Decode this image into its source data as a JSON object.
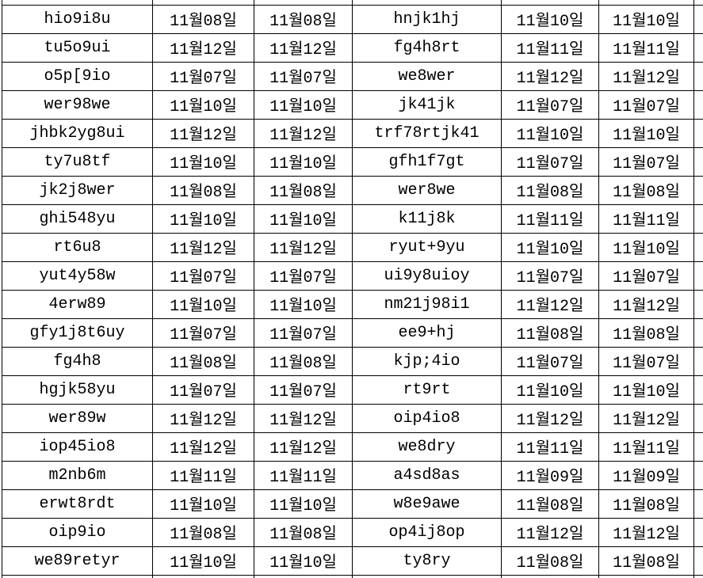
{
  "colors": {
    "background": "#ffffff",
    "grid_border": "#000000",
    "text": "#000000"
  },
  "table": {
    "description_visible_columns": 6,
    "rows": [
      [
        "hio9i8u",
        "11월08일",
        "11월08일",
        "hnjk1hj",
        "11월10일",
        "11월10일"
      ],
      [
        "tu5o9ui",
        "11월12일",
        "11월12일",
        "fg4h8rt",
        "11월11일",
        "11월11일"
      ],
      [
        "o5p[9io",
        "11월07일",
        "11월07일",
        "we8wer",
        "11월12일",
        "11월12일"
      ],
      [
        "wer98we",
        "11월10일",
        "11월10일",
        "jk41jk",
        "11월07일",
        "11월07일"
      ],
      [
        "jhbk2yg8ui",
        "11월12일",
        "11월12일",
        "trf78rtjk41",
        "11월10일",
        "11월10일"
      ],
      [
        "ty7u8tf",
        "11월10일",
        "11월10일",
        "gfh1f7gt",
        "11월07일",
        "11월07일"
      ],
      [
        "jk2j8wer",
        "11월08일",
        "11월08일",
        "wer8we",
        "11월08일",
        "11월08일"
      ],
      [
        "ghi548yu",
        "11월10일",
        "11월10일",
        "k11j8k",
        "11월11일",
        "11월11일"
      ],
      [
        "rt6u8",
        "11월12일",
        "11월12일",
        "ryut+9yu",
        "11월10일",
        "11월10일"
      ],
      [
        "yut4y58w",
        "11월07일",
        "11월07일",
        "ui9y8uioy",
        "11월07일",
        "11월07일"
      ],
      [
        "4erw89",
        "11월10일",
        "11월10일",
        "nm21j98i1",
        "11월12일",
        "11월12일"
      ],
      [
        "gfy1j8t6uy",
        "11월07일",
        "11월07일",
        "ee9+hj",
        "11월08일",
        "11월08일"
      ],
      [
        "fg4h8",
        "11월08일",
        "11월08일",
        "kjp;4io",
        "11월07일",
        "11월07일"
      ],
      [
        "hgjk58yu",
        "11월07일",
        "11월07일",
        "rt9rt",
        "11월10일",
        "11월10일"
      ],
      [
        "wer89w",
        "11월12일",
        "11월12일",
        "oip4io8",
        "11월12일",
        "11월12일"
      ],
      [
        "iop45io8",
        "11월12일",
        "11월12일",
        "we8dry",
        "11월11일",
        "11월11일"
      ],
      [
        "m2nb6m",
        "11월11일",
        "11월11일",
        "a4sd8as",
        "11월09일",
        "11월09일"
      ],
      [
        "erwt8rdt",
        "11월10일",
        "11월10일",
        "w8e9awe",
        "11월08일",
        "11월08일"
      ],
      [
        "oip9io",
        "11월08일",
        "11월08일",
        "op4ij8op",
        "11월12일",
        "11월12일"
      ],
      [
        "we89retyr",
        "11월10일",
        "11월10일",
        "ty8ry",
        "11월08일",
        "11월08일"
      ]
    ]
  }
}
